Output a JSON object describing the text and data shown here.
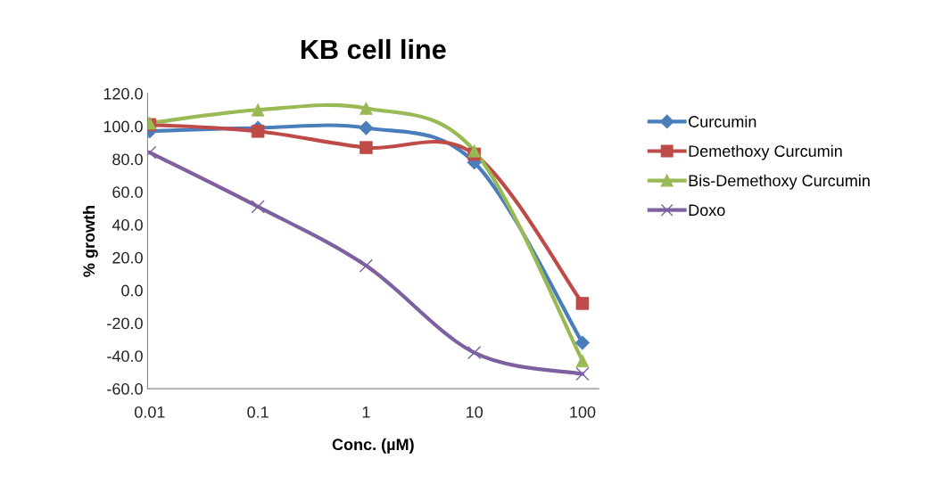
{
  "chart_data": {
    "type": "line",
    "title": "KB cell line",
    "xlabel": "Conc. (µM)",
    "ylabel": "% growth",
    "categories": [
      "0.01",
      "0.1",
      "1",
      "10",
      "100"
    ],
    "series": [
      {
        "name": "Curcumin",
        "color": "#4a7ebb",
        "marker": "diamond",
        "values": [
          97,
          99,
          99,
          78,
          -32
        ]
      },
      {
        "name": "Demethoxy Curcumin",
        "color": "#be4b48",
        "marker": "square",
        "values": [
          101,
          97,
          87,
          83,
          -8
        ]
      },
      {
        "name": "Bis-Demethoxy Curcumin",
        "color": "#98b954",
        "marker": "triangle",
        "values": [
          102,
          110,
          111,
          85,
          -43
        ]
      },
      {
        "name": "Doxo",
        "color": "#7d60a0",
        "marker": "cross",
        "values": [
          84,
          51,
          15,
          -38,
          -51
        ]
      }
    ],
    "ylim": [
      -60,
      120
    ],
    "yticks": [
      {
        "value": -60,
        "label": "-60.0"
      },
      {
        "value": -40,
        "label": "-40.0"
      },
      {
        "value": -20,
        "label": "-20.0"
      },
      {
        "value": 0,
        "label": "0.0"
      },
      {
        "value": 20,
        "label": "20.0"
      },
      {
        "value": 40,
        "label": "40.0"
      },
      {
        "value": 60,
        "label": "60.0"
      },
      {
        "value": 80,
        "label": "80.0"
      },
      {
        "value": 100,
        "label": "100.0"
      },
      {
        "value": 120,
        "label": "120.0"
      }
    ],
    "grid": false,
    "legend": "right"
  }
}
